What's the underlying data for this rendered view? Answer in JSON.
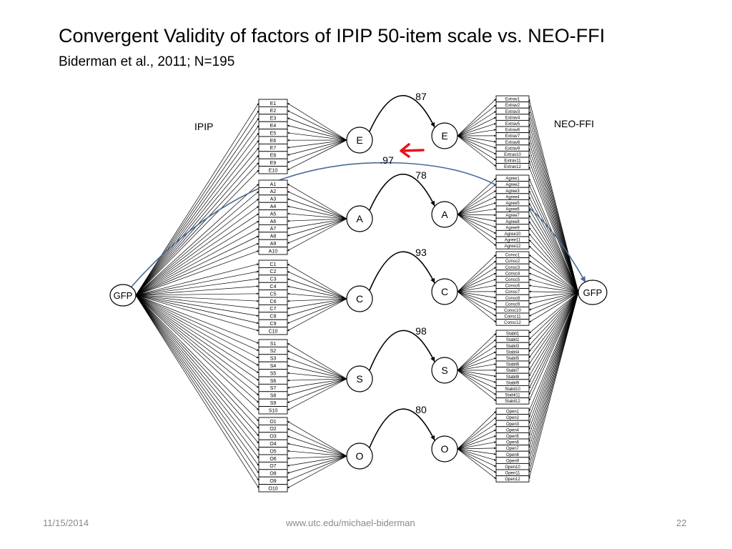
{
  "slide": {
    "title": "Convergent Validity of factors of IPIP 50-item scale vs. NEO-FFI",
    "subtitle": "Biderman et al., 2011; N=195"
  },
  "diagram": {
    "left_label": "IPIP",
    "right_label": "NEO-FFI",
    "general_factor": "GFP",
    "gfp_correlation": ".97",
    "factors": [
      {
        "name": "E",
        "correlation": ".87",
        "ipip_items": [
          "E1",
          "E2",
          "E3",
          "E4",
          "E5",
          "E6",
          "E7",
          "E8",
          "E9",
          "E10"
        ],
        "neo_items": [
          "Extrav1",
          "Extrav2",
          "Extrav3",
          "Extrav4",
          "Extrav5",
          "Extrav6",
          "Extrav7",
          "Extrav8",
          "Extrav9",
          "Extrav10",
          "Extrav11",
          "Extrav12"
        ]
      },
      {
        "name": "A",
        "correlation": ".78",
        "ipip_items": [
          "A1",
          "A2",
          "A3",
          "A4",
          "A5",
          "A6",
          "A7",
          "A8",
          "A9",
          "A10"
        ],
        "neo_items": [
          "Agree1",
          "Agree2",
          "Agree3",
          "Agree4",
          "Agree5",
          "Agree6",
          "Agree7",
          "Agree8",
          "Agree9",
          "Agree10",
          "Agree11",
          "Agree12"
        ]
      },
      {
        "name": "C",
        "correlation": ".93",
        "ipip_items": [
          "C1",
          "C2",
          "C3",
          "C4",
          "C5",
          "C6",
          "C7",
          "C8",
          "C9",
          "C10"
        ],
        "neo_items": [
          "Consc1",
          "Consc2",
          "Consc3",
          "Consc4",
          "Consc5",
          "Consc6",
          "Consc7",
          "Consc8",
          "Consc9",
          "Consc10",
          "Consc11",
          "Consc12"
        ]
      },
      {
        "name": "S",
        "correlation": ".98",
        "ipip_items": [
          "S1",
          "S2",
          "S3",
          "S4",
          "S5",
          "S6",
          "S7",
          "S8",
          "S9",
          "S10"
        ],
        "neo_items": [
          "Stabil1",
          "Stabil2",
          "Stabil3",
          "Stabil4",
          "Stabil5",
          "Stabil6",
          "Stabil7",
          "Stabil8",
          "Stabil9",
          "Stabil10",
          "Stabil11",
          "Stabil12"
        ]
      },
      {
        "name": "O",
        "correlation": ".80",
        "ipip_items": [
          "O1",
          "O2",
          "O3",
          "O4",
          "O5",
          "O6",
          "O7",
          "O8",
          "O9",
          "O10"
        ],
        "neo_items": [
          "Open1",
          "Open2",
          "Open3",
          "Open4",
          "Open5",
          "Open6",
          "Open7",
          "Open8",
          "Open9",
          "Open10",
          "Open11",
          "Open12"
        ]
      }
    ],
    "colors": {
      "gfp_path": "#4a6a96",
      "highlight_arrow": "#e8141c",
      "lines": "#000000"
    }
  },
  "footer": {
    "date": "11/15/2014",
    "url": "www.utc.edu/michael-biderman",
    "page": "22"
  }
}
